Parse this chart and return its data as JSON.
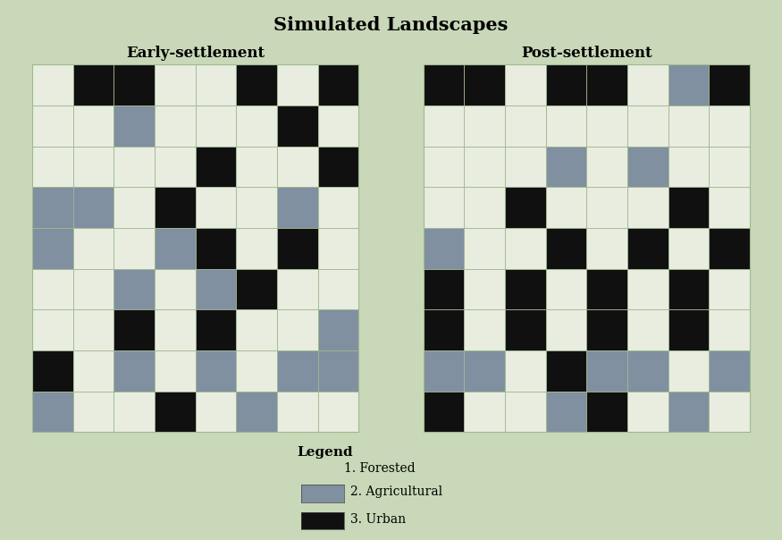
{
  "title": "Simulated Landscapes",
  "label_early": "Early-settlement",
  "label_post": "Post-settlement",
  "legend_title": "Legend",
  "legend_items": [
    "1. Forested",
    "2. Agricultural",
    "3. Urban"
  ],
  "colors": {
    "forested": "#e8ede0",
    "agricultural": "#8090a0",
    "urban": "#101010",
    "background": "#c8d8b8",
    "grid_line": "#a0b890"
  },
  "early_grid": [
    [
      1,
      3,
      3,
      1,
      1,
      3,
      1,
      3
    ],
    [
      1,
      1,
      2,
      1,
      1,
      1,
      3,
      1
    ],
    [
      1,
      1,
      1,
      1,
      3,
      1,
      1,
      3
    ],
    [
      2,
      2,
      1,
      3,
      1,
      1,
      2,
      1
    ],
    [
      2,
      1,
      1,
      2,
      3,
      1,
      3,
      1
    ],
    [
      1,
      1,
      2,
      1,
      2,
      3,
      1,
      1
    ],
    [
      1,
      1,
      3,
      1,
      3,
      1,
      1,
      2
    ],
    [
      3,
      1,
      2,
      1,
      2,
      1,
      2,
      2
    ],
    [
      2,
      1,
      1,
      3,
      1,
      2,
      1,
      1
    ]
  ],
  "post_grid": [
    [
      3,
      3,
      1,
      3,
      3,
      1,
      2,
      3
    ],
    [
      1,
      1,
      1,
      1,
      1,
      1,
      1,
      1
    ],
    [
      1,
      1,
      1,
      2,
      1,
      2,
      1,
      1
    ],
    [
      1,
      1,
      3,
      1,
      1,
      1,
      3,
      1
    ],
    [
      2,
      1,
      1,
      3,
      1,
      3,
      1,
      3
    ],
    [
      3,
      1,
      3,
      1,
      3,
      1,
      3,
      1
    ],
    [
      3,
      1,
      3,
      1,
      3,
      1,
      3,
      1
    ],
    [
      2,
      2,
      1,
      3,
      2,
      2,
      1,
      2
    ],
    [
      3,
      1,
      1,
      2,
      3,
      1,
      2,
      1
    ]
  ],
  "figsize": [
    8.75,
    6.04
  ],
  "dpi": 100
}
